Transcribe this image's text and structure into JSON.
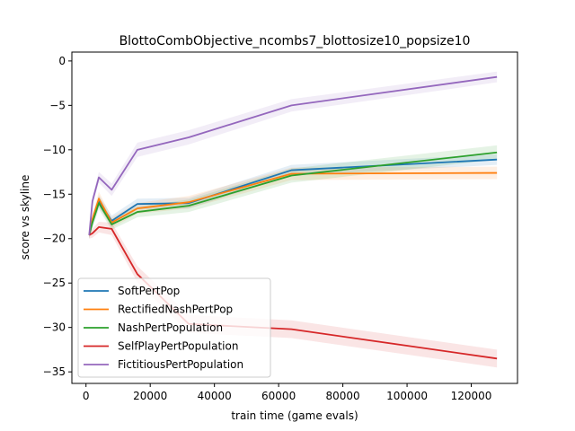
{
  "chart_data": {
    "type": "line",
    "title": "BlottoCombObjective_ncombs7_blottosize10_popsize10",
    "xlabel": "train time (game evals)",
    "ylabel": "score vs skyline",
    "xlim": [
      -4400,
      134400
    ],
    "ylim": [
      -36.3,
      1.0
    ],
    "xticks": [
      0,
      20000,
      40000,
      60000,
      80000,
      100000,
      120000
    ],
    "xtick_labels": [
      "0",
      "20000",
      "40000",
      "60000",
      "80000",
      "100000",
      "120000"
    ],
    "yticks": [
      0,
      -5,
      -10,
      -15,
      -20,
      -25,
      -30,
      -35
    ],
    "ytick_labels": [
      "0",
      "−5",
      "−10",
      "−15",
      "−20",
      "−25",
      "−30",
      "−35"
    ],
    "grid": false,
    "legend_position": "lower-left",
    "x": [
      1000,
      2000,
      4000,
      8000,
      16000,
      32000,
      64000,
      128000
    ],
    "series": [
      {
        "name": "SoftPertPop",
        "color": "#1f77b4",
        "values": [
          -19.6,
          -18.0,
          -15.8,
          -18.0,
          -16.1,
          -16.0,
          -12.3,
          -11.1
        ],
        "band": [
          0.4,
          0.6,
          0.7,
          0.6,
          0.6,
          0.6,
          0.6,
          0.6
        ]
      },
      {
        "name": "RectifiedNashPertPop",
        "color": "#ff7f0e",
        "values": [
          -19.6,
          -17.8,
          -15.5,
          -18.2,
          -16.6,
          -15.9,
          -12.7,
          -12.6
        ],
        "band": [
          0.4,
          0.6,
          0.8,
          0.6,
          0.6,
          0.7,
          0.7,
          0.7
        ]
      },
      {
        "name": "NashPertPopulation",
        "color": "#2ca02c",
        "values": [
          -19.6,
          -18.2,
          -16.0,
          -18.4,
          -17.0,
          -16.3,
          -12.9,
          -10.3
        ],
        "band": [
          0.4,
          0.6,
          0.7,
          0.6,
          0.6,
          0.7,
          0.8,
          0.8
        ]
      },
      {
        "name": "SelfPlayPertPopulation",
        "color": "#d62728",
        "values": [
          -19.6,
          -19.4,
          -18.7,
          -18.9,
          -24.0,
          -29.6,
          -30.2,
          -33.5
        ],
        "band": [
          0.4,
          0.5,
          0.6,
          0.7,
          0.9,
          1.0,
          1.0,
          1.0
        ]
      },
      {
        "name": "FictitiousPertPopulation",
        "color": "#9467bd",
        "values": [
          -19.6,
          -15.8,
          -13.1,
          -14.5,
          -10.0,
          -8.6,
          -5.0,
          -1.8
        ],
        "band": [
          0.4,
          0.6,
          0.6,
          0.7,
          0.8,
          0.8,
          0.7,
          0.6
        ]
      }
    ]
  }
}
